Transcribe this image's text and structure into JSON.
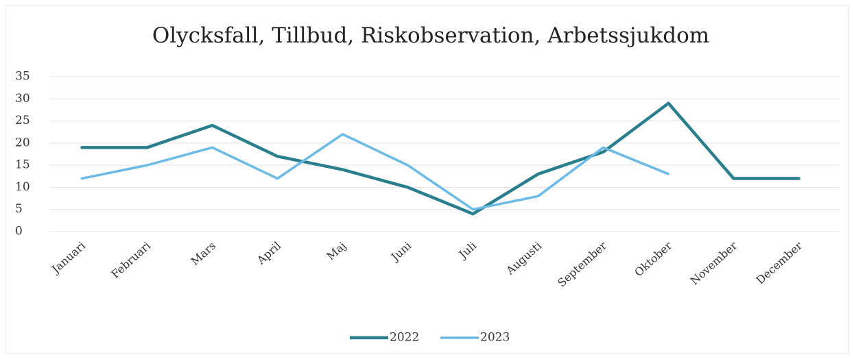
{
  "chart_data": {
    "type": "line",
    "title": "Olycksfall, Tillbud, Riskobservation, Arbetssjukdom",
    "categories": [
      "Januari",
      "Februari",
      "Mars",
      "April",
      "Maj",
      "Juni",
      "Juli",
      "Augusti",
      "September",
      "Oktober",
      "November",
      "December"
    ],
    "series": [
      {
        "name": "2022",
        "color": "#2a7f8f",
        "values": [
          19,
          19,
          24,
          17,
          14,
          10,
          4,
          13,
          18,
          29,
          12,
          12
        ]
      },
      {
        "name": "2023",
        "color": "#6bbbe8",
        "values": [
          12,
          15,
          19,
          12,
          22,
          15,
          5,
          8,
          19,
          13,
          null,
          null
        ]
      }
    ],
    "ylim": [
      0,
      35
    ],
    "yticks": [
      0,
      5,
      10,
      15,
      20,
      25,
      30,
      35
    ],
    "grid": true,
    "legend": "bottom"
  }
}
